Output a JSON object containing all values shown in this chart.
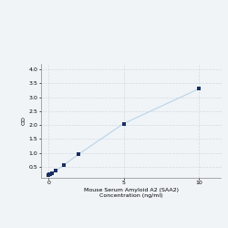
{
  "x": [
    0,
    0.0625,
    0.125,
    0.25,
    0.5,
    1.0,
    2.0,
    5.0,
    10.0
  ],
  "y": [
    0.2,
    0.22,
    0.24,
    0.27,
    0.35,
    0.55,
    0.95,
    2.05,
    3.3
  ],
  "line_color": "#b8d4e8",
  "marker_color": "#1a3060",
  "marker_size": 3.5,
  "marker_style": "s",
  "xlabel_line1": "Mouse Serum Amyloid A2 (SAA2)",
  "xlabel_line2": "Concentration (ng/ml)",
  "ylabel": "OD",
  "xlim": [
    -0.5,
    11.5
  ],
  "ylim": [
    0.1,
    4.2
  ],
  "yticks": [
    0.5,
    1.0,
    1.5,
    2.0,
    2.5,
    3.0,
    3.5,
    4.0
  ],
  "xticks": [
    0,
    5,
    10
  ],
  "grid_color": "#d0d8e0",
  "grid_style": "--",
  "bg_color": "#f0f4f7",
  "tick_label_fontsize": 4.5,
  "axis_label_fontsize": 4.5,
  "ylabel_fontsize": 4.5
}
